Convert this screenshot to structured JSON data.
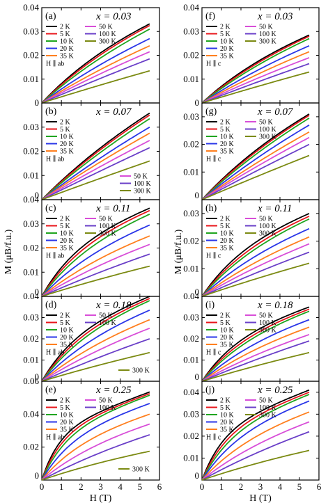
{
  "figure": {
    "ylabel_left": "M (μB/f.u.)",
    "ylabel_right": "M (μB/f.u.)",
    "xlabel_left": "H (T)",
    "xlabel_right": "H (T)"
  },
  "temperatures": [
    "2 K",
    "5 K",
    "10 K",
    "20 K",
    "35 K",
    "50 K",
    "100 K",
    "300 K"
  ],
  "series_colors": [
    "#000000",
    "#e8141a",
    "#1fa51f",
    "#2a36e8",
    "#ff7f1e",
    "#d84ed8",
    "#6a3fc8",
    "#7b8a12"
  ],
  "chart_data": [
    {
      "type": "line",
      "panel": "(a)",
      "annotation": "x = 0.03",
      "field": "H ∥ ab",
      "xlabel": "",
      "ylabel": "",
      "xlim": [
        0,
        6
      ],
      "ylim": [
        0,
        0.04
      ],
      "xticks": [
        0,
        1,
        2,
        3,
        4,
        5,
        6
      ],
      "yticks": [
        "0",
        "0.01",
        "0.02",
        "0.03",
        "0.04"
      ],
      "legend_position": "top-left",
      "x": [
        0,
        5.5
      ],
      "series": [
        {
          "name": "2 K",
          "values": [
            0,
            0.0332
          ]
        },
        {
          "name": "5 K",
          "values": [
            0,
            0.0325
          ]
        },
        {
          "name": "10 K",
          "values": [
            0,
            0.031
          ]
        },
        {
          "name": "20 K",
          "values": [
            0,
            0.027
          ]
        },
        {
          "name": "35 K",
          "values": [
            0,
            0.024
          ]
        },
        {
          "name": "50 K",
          "values": [
            0,
            0.0215
          ]
        },
        {
          "name": "100 K",
          "values": [
            0,
            0.0185
          ]
        },
        {
          "name": "300 K",
          "values": [
            0,
            0.0135
          ]
        }
      ]
    },
    {
      "type": "line",
      "panel": "(b)",
      "annotation": "x = 0.07",
      "field": "H ∥ ab",
      "xlabel": "",
      "ylabel": "",
      "xlim": [
        0,
        6
      ],
      "ylim": [
        0,
        0.04
      ],
      "xticks": [
        0,
        1,
        2,
        3,
        4,
        5,
        6
      ],
      "yticks": [
        "0",
        "0.01",
        "0.02",
        "0.03"
      ],
      "legend_position": "top-left / bottom-right",
      "x": [
        0,
        5.5
      ],
      "series": [
        {
          "name": "2 K",
          "values": [
            0,
            0.0358
          ]
        },
        {
          "name": "5 K",
          "values": [
            0,
            0.035
          ]
        },
        {
          "name": "10 K",
          "values": [
            0,
            0.0335
          ]
        },
        {
          "name": "20 K",
          "values": [
            0,
            0.03
          ]
        },
        {
          "name": "35 K",
          "values": [
            0,
            0.0275
          ]
        },
        {
          "name": "50 K",
          "values": [
            0,
            0.0245
          ]
        },
        {
          "name": "100 K",
          "values": [
            0,
            0.0215
          ]
        },
        {
          "name": "300 K",
          "values": [
            0,
            0.016
          ]
        }
      ]
    },
    {
      "type": "line",
      "panel": "(c)",
      "annotation": "x = 0.11",
      "field": "H ∥ ab",
      "xlabel": "",
      "ylabel": "",
      "xlim": [
        0,
        6
      ],
      "ylim": [
        0,
        0.04
      ],
      "xticks": [
        0,
        1,
        2,
        3,
        4,
        5,
        6
      ],
      "yticks": [
        "0",
        "0.01",
        "0.02",
        "0.03",
        "0.04"
      ],
      "legend_position": "top-left",
      "x": [
        0,
        5.5
      ],
      "series": [
        {
          "name": "2 K",
          "values": [
            0,
            0.0365
          ]
        },
        {
          "name": "5 K",
          "values": [
            0,
            0.0355
          ]
        },
        {
          "name": "10 K",
          "values": [
            0,
            0.034
          ]
        },
        {
          "name": "20 K",
          "values": [
            0,
            0.0295
          ]
        },
        {
          "name": "35 K",
          "values": [
            0,
            0.025
          ]
        },
        {
          "name": "50 K",
          "values": [
            0,
            0.0215
          ]
        },
        {
          "name": "100 K",
          "values": [
            0,
            0.0175
          ]
        },
        {
          "name": "300 K",
          "values": [
            0,
            0.0125
          ]
        }
      ]
    },
    {
      "type": "line",
      "panel": "(d)",
      "annotation": "x = 0.18",
      "field": "H ∥ ab",
      "xlabel": "",
      "ylabel": "",
      "xlim": [
        0,
        6
      ],
      "ylim": [
        0,
        0.04
      ],
      "xticks": [
        0,
        1,
        2,
        3,
        4,
        5,
        6
      ],
      "yticks": [
        "0",
        "0.01",
        "0.02",
        "0.03",
        "0.04"
      ],
      "legend_position": "top-left / bottom-right",
      "x": [
        0,
        5.5
      ],
      "series": [
        {
          "name": "2 K",
          "values": [
            0,
            0.04
          ]
        },
        {
          "name": "5 K",
          "values": [
            0,
            0.039
          ]
        },
        {
          "name": "10 K",
          "values": [
            0,
            0.038
          ]
        },
        {
          "name": "20 K",
          "values": [
            0,
            0.0335
          ]
        },
        {
          "name": "35 K",
          "values": [
            0,
            0.029
          ]
        },
        {
          "name": "50 K",
          "values": [
            0,
            0.025
          ]
        },
        {
          "name": "100 K",
          "values": [
            0,
            0.02
          ]
        },
        {
          "name": "300 K",
          "values": [
            0,
            0.0135
          ]
        }
      ]
    },
    {
      "type": "line",
      "panel": "(e)",
      "annotation": "x = 0.25",
      "field": "H ∥ ab",
      "xlabel": "H (T)",
      "ylabel": "",
      "xlim": [
        0,
        6
      ],
      "ylim": [
        0,
        0.06
      ],
      "xticks": [
        0,
        1,
        2,
        3,
        4,
        5,
        6
      ],
      "yticks": [
        "0",
        "0.02",
        "0.04",
        "0.06"
      ],
      "legend_position": "top-left / bottom-right",
      "x": [
        0,
        5.5
      ],
      "series": [
        {
          "name": "2 K",
          "values": [
            0,
            0.0535
          ]
        },
        {
          "name": "5 K",
          "values": [
            0,
            0.0525
          ]
        },
        {
          "name": "10 K",
          "values": [
            0,
            0.0515
          ]
        },
        {
          "name": "20 K",
          "values": [
            0,
            0.0465
          ]
        },
        {
          "name": "35 K",
          "values": [
            0,
            0.04
          ]
        },
        {
          "name": "50 K",
          "values": [
            0,
            0.034
          ]
        },
        {
          "name": "100 K",
          "values": [
            0,
            0.0275
          ]
        },
        {
          "name": "300 K",
          "values": [
            0,
            0.0175
          ]
        }
      ]
    },
    {
      "type": "line",
      "panel": "(f)",
      "annotation": "x = 0.03",
      "field": "H ∥ c",
      "xlabel": "",
      "ylabel": "",
      "xlim": [
        0,
        6
      ],
      "ylim": [
        0,
        0.04
      ],
      "xticks": [
        0,
        1,
        2,
        3,
        4,
        5,
        6
      ],
      "yticks": [
        "0",
        "0.01",
        "0.02",
        "0.03",
        "0.04"
      ],
      "legend_position": "top-left",
      "x": [
        0,
        5.5
      ],
      "series": [
        {
          "name": "2 K",
          "values": [
            0,
            0.0285
          ]
        },
        {
          "name": "5 K",
          "values": [
            0,
            0.028
          ]
        },
        {
          "name": "10 K",
          "values": [
            0,
            0.027
          ]
        },
        {
          "name": "20 K",
          "values": [
            0,
            0.024
          ]
        },
        {
          "name": "35 K",
          "values": [
            0,
            0.0215
          ]
        },
        {
          "name": "50 K",
          "values": [
            0,
            0.019
          ]
        },
        {
          "name": "100 K",
          "values": [
            0,
            0.0165
          ]
        },
        {
          "name": "300 K",
          "values": [
            0,
            0.013
          ]
        }
      ]
    },
    {
      "type": "line",
      "panel": "(g)",
      "annotation": "x = 0.07",
      "field": "H ∥ c",
      "xlabel": "",
      "ylabel": "",
      "xlim": [
        0,
        6
      ],
      "ylim": [
        0,
        0.035
      ],
      "xticks": [
        0,
        1,
        2,
        3,
        4,
        5,
        6
      ],
      "yticks": [
        "0",
        "0.01",
        "0.02",
        "0.03"
      ],
      "legend_position": "top-left / top-right",
      "x": [
        0,
        5.5
      ],
      "series": [
        {
          "name": "2 K",
          "values": [
            0,
            0.031
          ]
        },
        {
          "name": "5 K",
          "values": [
            0,
            0.0305
          ]
        },
        {
          "name": "10 K",
          "values": [
            0,
            0.0295
          ]
        },
        {
          "name": "20 K",
          "values": [
            0,
            0.027
          ]
        },
        {
          "name": "35 K",
          "values": [
            0,
            0.0245
          ]
        },
        {
          "name": "50 K",
          "values": [
            0,
            0.0225
          ]
        },
        {
          "name": "100 K",
          "values": [
            0,
            0.02
          ]
        },
        {
          "name": "300 K",
          "values": [
            0,
            0.016
          ]
        }
      ]
    },
    {
      "type": "line",
      "panel": "(h)",
      "annotation": "x = 0.11",
      "field": "H ∥ c",
      "xlabel": "",
      "ylabel": "",
      "xlim": [
        0,
        6
      ],
      "ylim": [
        0,
        0.035
      ],
      "xticks": [
        0,
        1,
        2,
        3,
        4,
        5,
        6
      ],
      "yticks": [
        "0",
        "0.01",
        "0.02",
        "0.03"
      ],
      "legend_position": "top-left / top-right",
      "x": [
        0,
        5.5
      ],
      "series": [
        {
          "name": "2 K",
          "values": [
            0,
            0.03
          ]
        },
        {
          "name": "5 K",
          "values": [
            0,
            0.029
          ]
        },
        {
          "name": "10 K",
          "values": [
            0,
            0.028
          ]
        },
        {
          "name": "20 K",
          "values": [
            0,
            0.0245
          ]
        },
        {
          "name": "35 K",
          "values": [
            0,
            0.0215
          ]
        },
        {
          "name": "50 K",
          "values": [
            0,
            0.019
          ]
        },
        {
          "name": "100 K",
          "values": [
            0,
            0.016
          ]
        },
        {
          "name": "300 K",
          "values": [
            0,
            0.012
          ]
        }
      ]
    },
    {
      "type": "line",
      "panel": "(i)",
      "annotation": "x = 0.18",
      "field": "H ∥ c",
      "xlabel": "",
      "ylabel": "",
      "xlim": [
        0,
        6
      ],
      "ylim": [
        0,
        0.04
      ],
      "xticks": [
        0,
        1,
        2,
        3,
        4,
        5,
        6
      ],
      "yticks": [
        "0",
        "0.01",
        "0.02",
        "0.03",
        "0.04"
      ],
      "legend_position": "top-left / top-right",
      "x": [
        0,
        5.5
      ],
      "series": [
        {
          "name": "2 K",
          "values": [
            0,
            0.035
          ]
        },
        {
          "name": "5 K",
          "values": [
            0,
            0.034
          ]
        },
        {
          "name": "10 K",
          "values": [
            0,
            0.033
          ]
        },
        {
          "name": "20 K",
          "values": [
            0,
            0.029
          ]
        },
        {
          "name": "35 K",
          "values": [
            0,
            0.0255
          ]
        },
        {
          "name": "50 K",
          "values": [
            0,
            0.022
          ]
        },
        {
          "name": "100 K",
          "values": [
            0,
            0.019
          ]
        },
        {
          "name": "300 K",
          "values": [
            0,
            0.0135
          ]
        }
      ]
    },
    {
      "type": "line",
      "panel": "(j)",
      "annotation": "x = 0.25",
      "field": "H ∥ c",
      "xlabel": "H (T)",
      "ylabel": "",
      "xlim": [
        0,
        6
      ],
      "ylim": [
        0,
        0.045
      ],
      "xticks": [
        0,
        1,
        2,
        3,
        4,
        5,
        6
      ],
      "yticks": [
        "0",
        "0.01",
        "0.02",
        "0.03",
        "0.04"
      ],
      "legend_position": "top-left / top-right",
      "x": [
        0,
        5.5
      ],
      "series": [
        {
          "name": "2 K",
          "values": [
            0,
            0.041
          ]
        },
        {
          "name": "5 K",
          "values": [
            0,
            0.04
          ]
        },
        {
          "name": "10 K",
          "values": [
            0,
            0.039
          ]
        },
        {
          "name": "20 K",
          "values": [
            0,
            0.036
          ]
        },
        {
          "name": "35 K",
          "values": [
            0,
            0.031
          ]
        },
        {
          "name": "50 K",
          "values": [
            0,
            0.0265
          ]
        },
        {
          "name": "100 K",
          "values": [
            0,
            0.022
          ]
        },
        {
          "name": "300 K",
          "values": [
            0,
            0.0135
          ]
        }
      ]
    }
  ]
}
